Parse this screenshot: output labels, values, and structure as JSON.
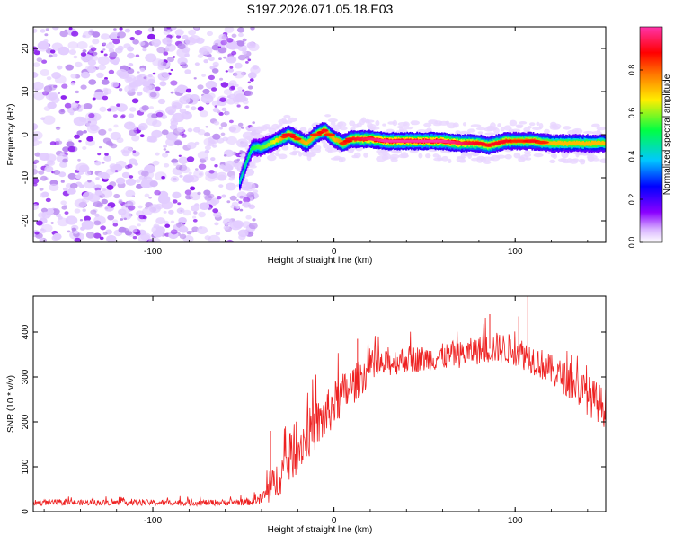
{
  "title": "S197.2026.071.05.18.E03",
  "chart_data": [
    {
      "type": "heatmap",
      "name": "spectrogram",
      "xlabel": "Height of straight line (km)",
      "ylabel": "Frequency (Hz)",
      "xlim": [
        -166,
        150
      ],
      "ylim": [
        -25,
        25
      ],
      "xticks": [
        -100,
        0,
        100
      ],
      "yticks": [
        -20,
        -10,
        0,
        10,
        20
      ],
      "colorbar": {
        "label": "Normalized spectral amplitude",
        "range": [
          0,
          1
        ],
        "ticks": [
          "0.0",
          "0.2",
          "0.4",
          "0.6",
          "0.8"
        ],
        "colors": [
          "#ffffff",
          "#d9b3ff",
          "#8a00ff",
          "#0000ff",
          "#00c8ff",
          "#00ff44",
          "#ffee00",
          "#ff7700",
          "#ff0000",
          "#ff33aa"
        ]
      },
      "noise_region_x": [
        -166,
        -48
      ],
      "ridge": {
        "x": [
          -52,
          -48,
          -45,
          -40,
          -35,
          -30,
          -25,
          -20,
          -15,
          -10,
          -5,
          0,
          5,
          10,
          20,
          30,
          40,
          50,
          60,
          70,
          80,
          85,
          90,
          95,
          100,
          105,
          110,
          115,
          120,
          130,
          140,
          150
        ],
        "freq": [
          -11,
          -6,
          -3,
          -3,
          -2,
          -1,
          0,
          -1,
          -2,
          0,
          1,
          -1,
          -2,
          -1,
          -1,
          -1.5,
          -1.5,
          -1.5,
          -1.5,
          -2,
          -2,
          -2.5,
          -2,
          -1.5,
          -1.5,
          -1.5,
          -1.5,
          -1.8,
          -2,
          -2,
          -2,
          -2
        ],
        "amplitude": [
          0.45,
          0.5,
          0.55,
          0.6,
          0.65,
          0.75,
          0.85,
          0.8,
          0.75,
          0.8,
          0.85,
          0.75,
          0.8,
          0.85,
          0.9,
          0.95,
          0.95,
          0.95,
          0.95,
          0.9,
          0.85,
          0.85,
          0.85,
          0.85,
          0.8,
          0.8,
          0.85,
          0.8,
          0.75,
          0.75,
          0.75,
          0.75
        ]
      }
    },
    {
      "type": "line",
      "name": "snr",
      "xlabel": "Height of straight line (km)",
      "ylabel": "SNR (10 * v/v)",
      "xlim": [
        -166,
        150
      ],
      "ylim": [
        0,
        480
      ],
      "xticks": [
        -100,
        0,
        100
      ],
      "yticks": [
        0,
        100,
        200,
        300,
        400
      ],
      "color": "#ee2222",
      "envelope": {
        "x": [
          -166,
          -60,
          -45,
          -40,
          -35,
          -30,
          -25,
          -20,
          -15,
          -10,
          -5,
          0,
          5,
          10,
          15,
          20,
          30,
          40,
          50,
          60,
          70,
          80,
          90,
          100,
          110,
          120,
          130,
          140,
          150
        ],
        "mean": [
          20,
          20,
          22,
          28,
          50,
          80,
          110,
          140,
          170,
          190,
          210,
          240,
          260,
          280,
          300,
          315,
          330,
          340,
          340,
          345,
          350,
          360,
          365,
          360,
          340,
          315,
          290,
          260,
          230
        ],
        "spread": [
          6,
          7,
          8,
          15,
          35,
          45,
          50,
          55,
          55,
          55,
          55,
          50,
          50,
          45,
          40,
          35,
          30,
          30,
          30,
          30,
          30,
          32,
          35,
          35,
          35,
          35,
          40,
          45,
          45
        ]
      },
      "peaks": [
        {
          "x": 107,
          "y": 480
        },
        {
          "x": 102,
          "y": 435
        },
        {
          "x": 86,
          "y": 440
        },
        {
          "x": 13,
          "y": 385
        },
        {
          "x": -35,
          "y": 180
        }
      ]
    }
  ]
}
